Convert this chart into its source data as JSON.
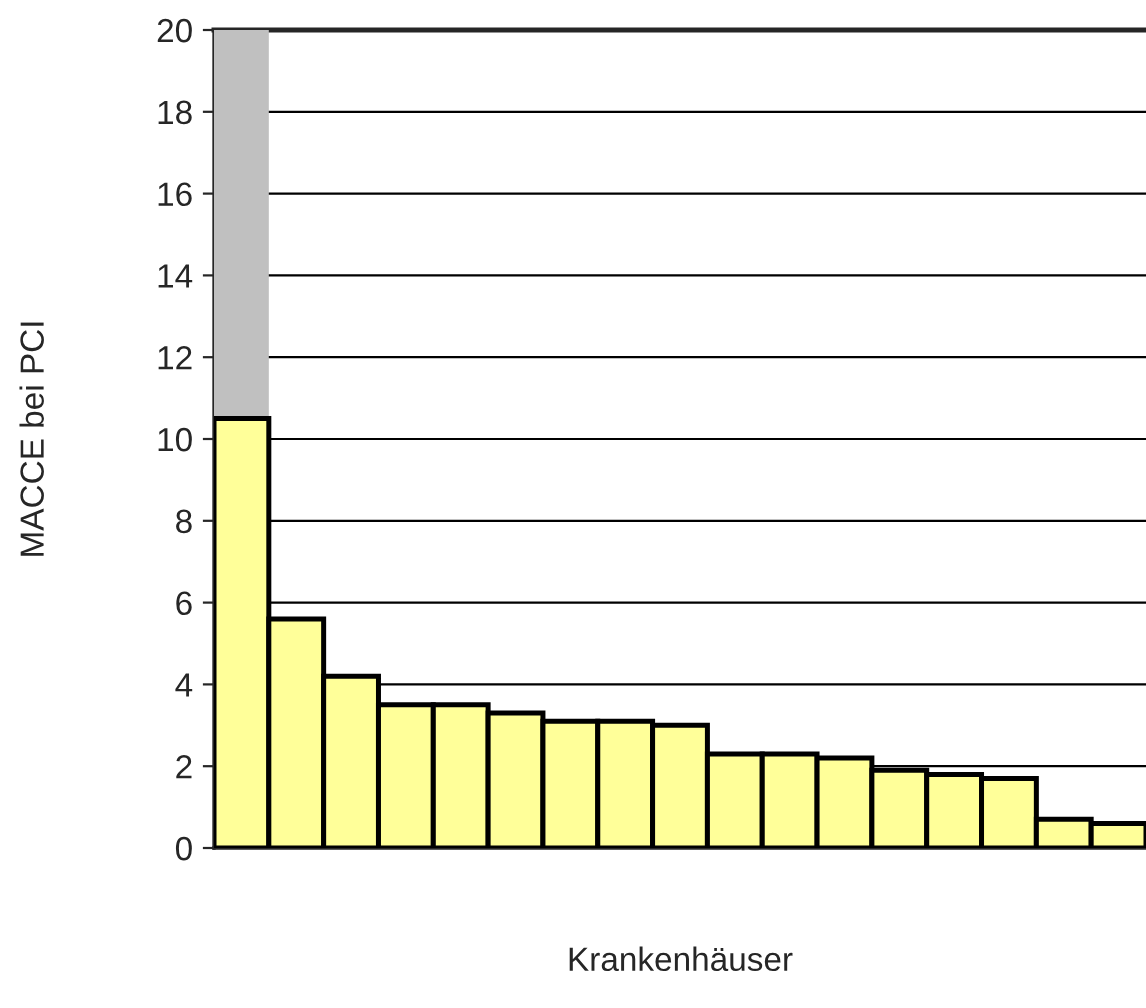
{
  "chart_data": {
    "type": "bar",
    "xlabel": "Krankenhäuser",
    "ylabel": "MACCE bei PCI",
    "categories": [
      null,
      null,
      null,
      null,
      null,
      null,
      null,
      null,
      null,
      null,
      null,
      null,
      null,
      null,
      null,
      null,
      null
    ],
    "stacked": true,
    "series": [
      {
        "color": "#ffff99",
        "values": [
          10.5,
          5.6,
          4.2,
          3.5,
          3.5,
          3.3,
          3.1,
          3.1,
          3.0,
          2.3,
          2.3,
          2.2,
          1.9,
          1.8,
          1.7,
          0.7,
          0.6
        ]
      },
      {
        "color": "#c0c0c0",
        "values": [
          9.5,
          null,
          null,
          null,
          null,
          null,
          null,
          null,
          null,
          null,
          null,
          null,
          null,
          null,
          null,
          null,
          null
        ]
      }
    ],
    "ylim": [
      0,
      20
    ],
    "yticks": [
      0,
      2,
      4,
      6,
      8,
      10,
      12,
      14,
      16,
      18,
      20
    ],
    "grid": "y",
    "legend": false
  }
}
